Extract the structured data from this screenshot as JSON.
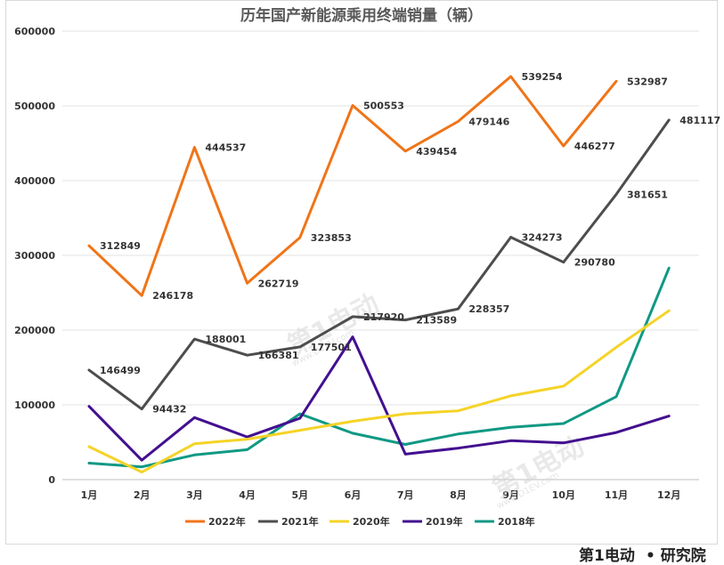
{
  "chart_data": {
    "type": "line",
    "title": "历年国产新能源乘用终端销量（辆）",
    "categories": [
      "1月",
      "2月",
      "3月",
      "4月",
      "5月",
      "6月",
      "7月",
      "8月",
      "9月",
      "10月",
      "11月",
      "12月"
    ],
    "ylim": [
      0,
      600000
    ],
    "yticks": [
      0,
      100000,
      200000,
      300000,
      400000,
      500000,
      600000
    ],
    "grid": true,
    "legend_position": "bottom",
    "series": [
      {
        "name": "2022年",
        "color": "#F07418",
        "values": [
          312849,
          246178,
          444537,
          262719,
          323853,
          500553,
          439454,
          479146,
          539254,
          446277,
          532987,
          null
        ],
        "labels": true
      },
      {
        "name": "2021年",
        "color": "#4D4D4D",
        "values": [
          146499,
          94432,
          188001,
          166381,
          177501,
          217920,
          213589,
          228357,
          324273,
          290780,
          381651,
          481117
        ],
        "labels": true
      },
      {
        "name": "2020年",
        "color": "#F5D327",
        "values": [
          44000,
          10000,
          48000,
          54000,
          66000,
          78000,
          88000,
          92000,
          112000,
          125000,
          177000,
          226000
        ],
        "labels": false
      },
      {
        "name": "2019年",
        "color": "#43108F",
        "values": [
          98000,
          26000,
          83000,
          57000,
          82000,
          191000,
          34000,
          42000,
          52000,
          49000,
          63000,
          85000
        ],
        "labels": false
      },
      {
        "name": "2018年",
        "color": "#109984",
        "values": [
          22000,
          17000,
          33000,
          40000,
          88000,
          62000,
          47000,
          61000,
          70000,
          75000,
          111000,
          283000
        ],
        "labels": false
      }
    ]
  },
  "watermark": {
    "text": "第1电动",
    "sub": "www.D1EV.com"
  },
  "brand": {
    "logo": "第1电动",
    "suffix": "研究院"
  }
}
